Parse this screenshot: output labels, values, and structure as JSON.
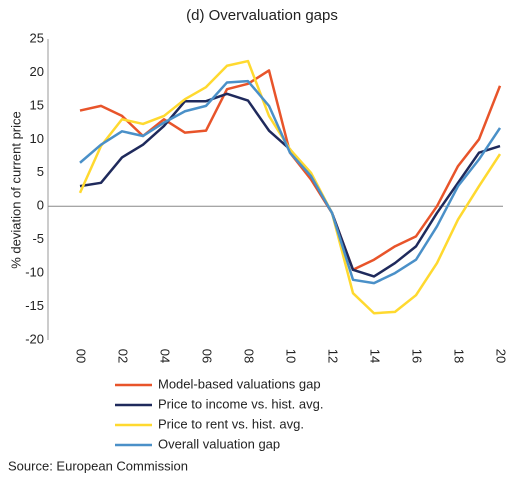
{
  "chart_data": {
    "type": "line",
    "title": "(d) Overvaluation gaps",
    "y_label": "% deviation of current price",
    "source": "Source: European Commission",
    "categories": [
      "00",
      null,
      "02",
      null,
      "04",
      null,
      "06",
      null,
      "08",
      null,
      "10",
      null,
      "12",
      null,
      "14",
      null,
      "16",
      null,
      "18",
      null,
      "20"
    ],
    "series": [
      {
        "name": "Model-based valuations gap",
        "color": "#e8542a",
        "values": [
          14.3,
          15,
          13.5,
          10.5,
          13,
          11,
          11.3,
          17.5,
          18.3,
          20.3,
          8,
          4,
          -1,
          -9.5,
          -8,
          -6,
          -4.5,
          0,
          6,
          10,
          18
        ]
      },
      {
        "name": "Price to income vs. hist. avg.",
        "color": "#1f2a5c",
        "values": [
          3,
          3.5,
          7.3,
          9.2,
          12,
          15.7,
          15.7,
          16.8,
          15.8,
          11.3,
          8.5,
          4.5,
          -1,
          -9.5,
          -10.5,
          -8.5,
          -6,
          -1,
          3.5,
          8,
          9
        ]
      },
      {
        "name": "Price to rent vs. hist. avg.",
        "color": "#ffd92f",
        "values": [
          2,
          9,
          13,
          12.3,
          13.5,
          16,
          17.8,
          21,
          21.7,
          13.5,
          8.5,
          5,
          -1,
          -13,
          -16,
          -15.8,
          -13.3,
          -8.5,
          -2,
          3,
          7.8
        ]
      },
      {
        "name": "Overall valuation gap",
        "color": "#4a90c8",
        "values": [
          6.5,
          9.2,
          11.2,
          10.5,
          12.5,
          14.2,
          15,
          18.5,
          18.7,
          15,
          8,
          4.5,
          -1,
          -11,
          -11.5,
          -10,
          -8,
          -3,
          3,
          7,
          11.7
        ]
      }
    ],
    "ylim": [
      -20,
      25
    ],
    "yticks": [
      -20,
      -15,
      -10,
      -5,
      0,
      5,
      10,
      15,
      20,
      25
    ],
    "grid": false
  }
}
